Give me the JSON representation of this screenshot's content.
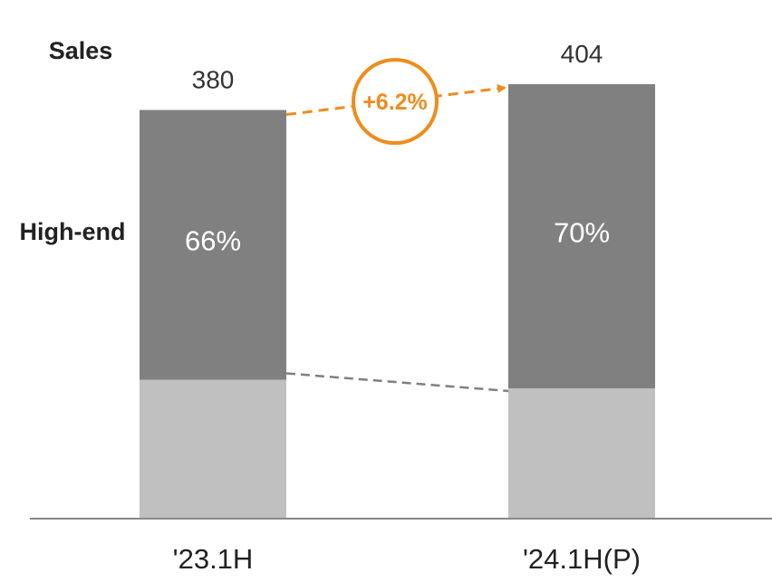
{
  "chart_data": {
    "type": "bar",
    "stacked": true,
    "categories": [
      "'23.1H",
      "'24.1H(P)"
    ],
    "totals": [
      380,
      404
    ],
    "total_row_label": "Sales",
    "series": [
      {
        "name": "High-end",
        "share_percent": [
          66,
          70
        ],
        "value_labels": [
          "66%",
          "70%"
        ],
        "color": "#808080"
      },
      {
        "share_percent": [
          34,
          30
        ],
        "color": "#c0c0c0"
      }
    ],
    "growth_annotation": "+6.2%",
    "legend": "none",
    "grid": false
  },
  "colors": {
    "accent": "#ef8c1c",
    "dashed_connector": "#808080",
    "axis": "#888888",
    "text": "#222222"
  }
}
